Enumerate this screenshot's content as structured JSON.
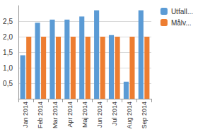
{
  "chart_data": {
    "type": "bar",
    "categories": [
      "Jan 2014",
      "Feb 2014",
      "Mar 2014",
      "Apr 2014",
      "Maj 2014",
      "Jun 2014",
      "Jul 2014",
      "Aug 2014",
      "Sep 2014"
    ],
    "series": [
      {
        "name": "Utfall...",
        "color": "#5b9bd5",
        "values": [
          1.4,
          2.45,
          2.55,
          2.55,
          2.65,
          2.85,
          2.05,
          0.55,
          2.85
        ]
      },
      {
        "name": "Målv...",
        "color": "#ed7d31",
        "values": [
          2.0,
          2.0,
          2.0,
          2.0,
          2.0,
          2.0,
          2.0,
          2.0,
          2.0
        ]
      }
    ],
    "ylim": [
      0,
      3
    ],
    "yticks": [
      {
        "value": 0.5,
        "label": "0,5"
      },
      {
        "value": 1.0,
        "label": "1,0"
      },
      {
        "value": 1.5,
        "label": "1,5"
      },
      {
        "value": 2.0,
        "label": "2,0"
      },
      {
        "value": 2.5,
        "label": "2,5"
      }
    ],
    "grid": true,
    "legend": "top-right"
  }
}
